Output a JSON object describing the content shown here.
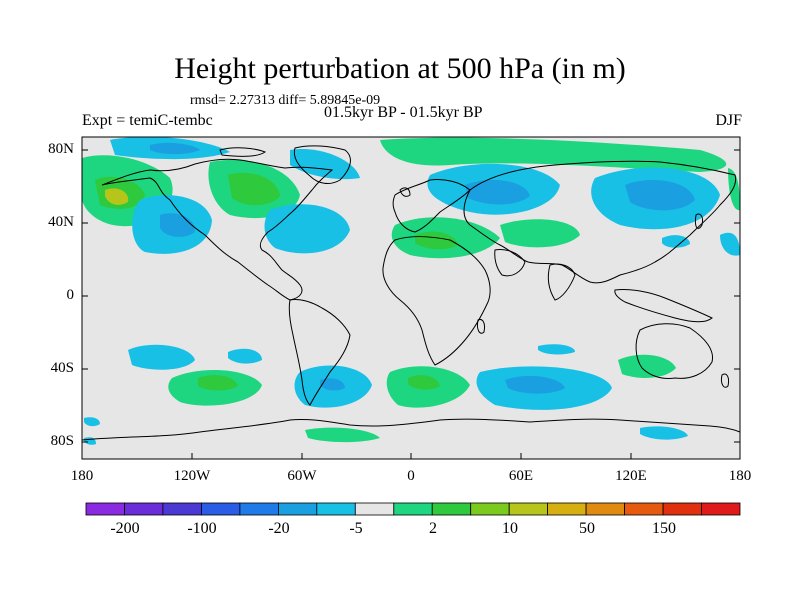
{
  "title": "Height perturbation at 500 hPa (in m)",
  "stats": "rmsd= 2.27313 diff= 5.89845e-09",
  "expt": "Expt = temiC-tembc",
  "period": "01.5kyr BP - 01.5kyr BP",
  "season": "DJF",
  "y_ticks": [
    "80N",
    "40N",
    "0",
    "40S",
    "80S"
  ],
  "x_ticks": [
    "180",
    "120W",
    "60W",
    "0",
    "60E",
    "120E",
    "180"
  ],
  "colorbar": {
    "labels": [
      "-200",
      "-100",
      "-20",
      "-5",
      "2",
      "10",
      "50",
      "150"
    ],
    "colors": [
      "#8a2be2",
      "#6a2dd9",
      "#4b39d4",
      "#2a5ce6",
      "#1f7be8",
      "#1aa0e0",
      "#18c0e6",
      "#e6e6e6",
      "#1ed67f",
      "#2ec93c",
      "#7bcb1e",
      "#b7c51a",
      "#d6b010",
      "#e08a10",
      "#e65a10",
      "#e03010",
      "#e01a1a"
    ]
  },
  "map_colors": {
    "background": "#e6e6e6",
    "blue_light": "#18c0e6",
    "blue_mid": "#1aa0e0",
    "blue_dark": "#1f7be8",
    "green_light": "#1ed67f",
    "green_mid": "#2ec93c",
    "yellow_green": "#b7c51a"
  }
}
